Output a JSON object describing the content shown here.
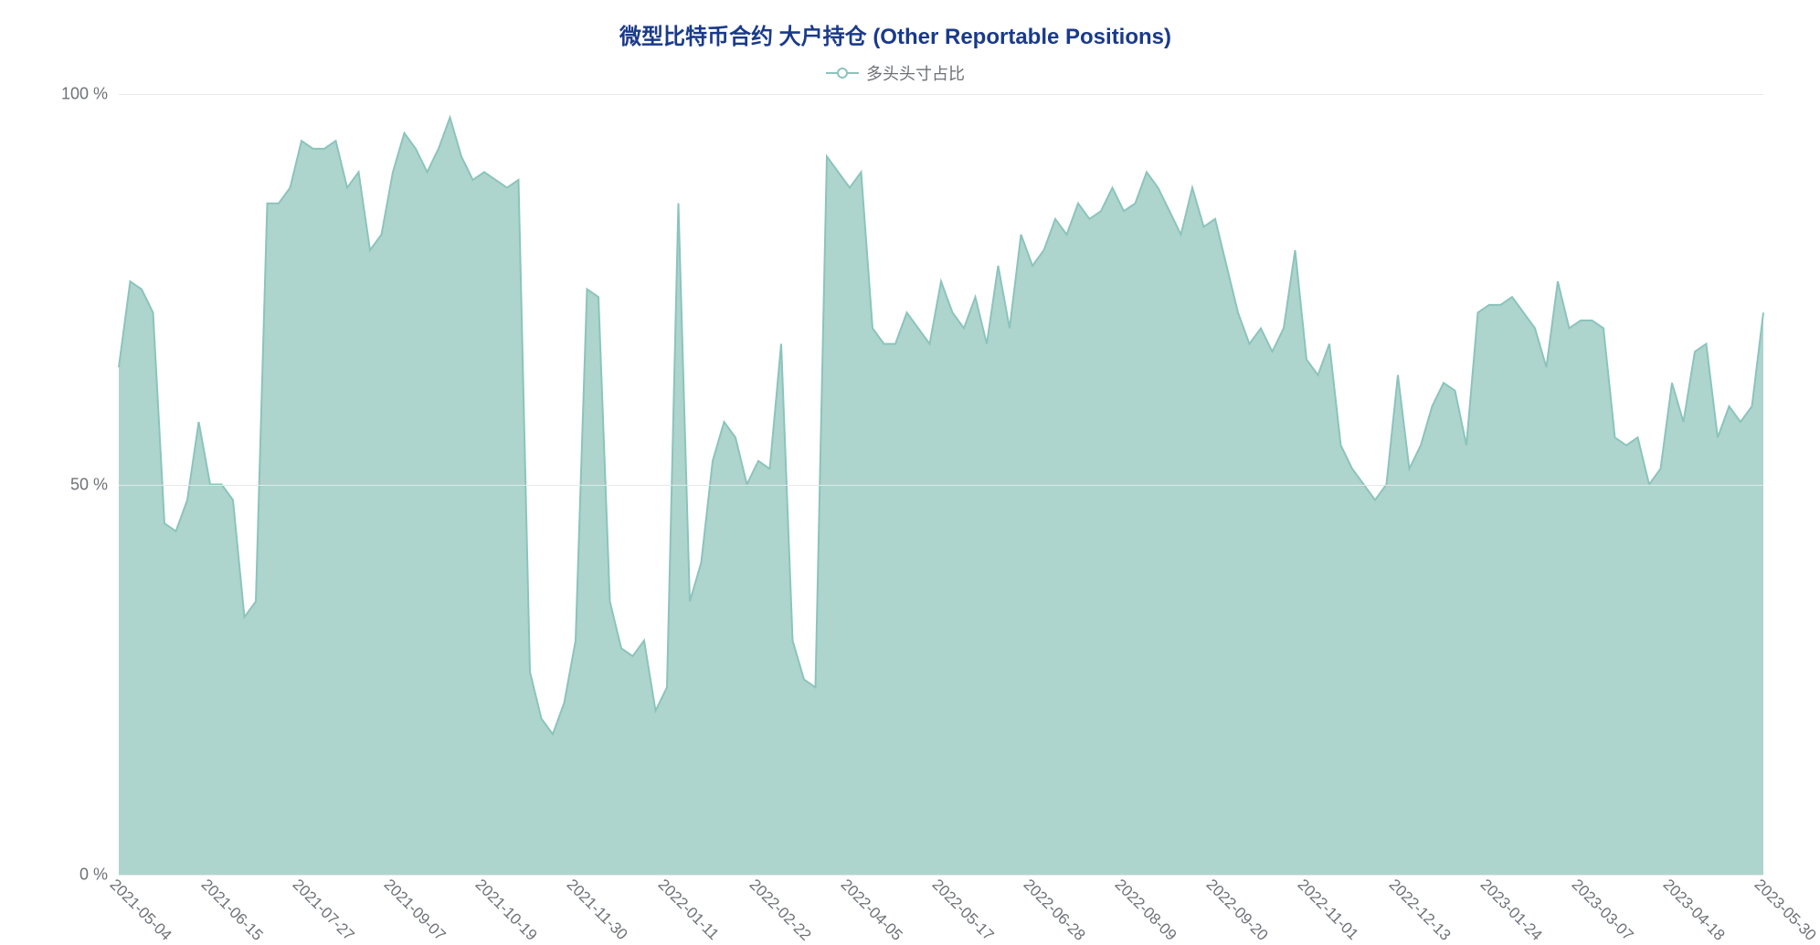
{
  "chart": {
    "type": "area",
    "title": "微型比特币合约 大户持仓 (Other Reportable Positions)",
    "title_color": "#1a3a8a",
    "title_fontsize": 24,
    "legend": {
      "label": "多头头寸占比",
      "color": "#8bc4bc",
      "label_color": "#6d7278",
      "label_fontsize": 18
    },
    "ylim": [
      0,
      100
    ],
    "yticks": [
      0,
      50,
      100
    ],
    "ytick_format": " %",
    "ytick_color": "#6d7278",
    "ytick_fontsize": 18,
    "grid_color": "#e8e8e8",
    "background_color": "#ffffff",
    "area_fill": "#a0cdc6",
    "area_fill_opacity": 0.85,
    "line_color": "#8bc4bc",
    "line_width": 2,
    "x_labels": [
      "2021-05-04",
      "2021-06-15",
      "2021-07-27",
      "2021-09-07",
      "2021-10-19",
      "2021-11-30",
      "2022-01-11",
      "2022-02-22",
      "2022-04-05",
      "2022-05-17",
      "2022-06-28",
      "2022-08-09",
      "2022-09-20",
      "2022-11-01",
      "2022-12-13",
      "2023-01-24",
      "2023-03-07",
      "2023-04-18",
      "2023-05-30"
    ],
    "x_tick_color": "#6d7278",
    "x_tick_fontsize": 17,
    "x_tick_rotation": 45,
    "values": [
      65,
      76,
      75,
      72,
      45,
      44,
      48,
      58,
      50,
      50,
      48,
      33,
      35,
      86,
      86,
      88,
      94,
      93,
      93,
      94,
      88,
      90,
      80,
      82,
      90,
      95,
      93,
      90,
      93,
      97,
      92,
      89,
      90,
      89,
      88,
      89,
      26,
      20,
      18,
      22,
      30,
      75,
      74,
      35,
      29,
      28,
      30,
      21,
      24,
      86,
      35,
      40,
      53,
      58,
      56,
      50,
      53,
      52,
      68,
      30,
      25,
      24,
      92,
      90,
      88,
      90,
      70,
      68,
      68,
      72,
      70,
      68,
      76,
      72,
      70,
      74,
      68,
      78,
      70,
      82,
      78,
      80,
      84,
      82,
      86,
      84,
      85,
      88,
      85,
      86,
      90,
      88,
      85,
      82,
      88,
      83,
      84,
      78,
      72,
      68,
      70,
      67,
      70,
      80,
      66,
      64,
      68,
      55,
      52,
      50,
      48,
      50,
      64,
      52,
      55,
      60,
      63,
      62,
      55,
      72,
      73,
      73,
      74,
      72,
      70,
      65,
      76,
      70,
      71,
      71,
      70,
      56,
      55,
      56,
      50,
      52,
      63,
      58,
      67,
      68,
      56,
      60,
      58,
      60,
      72
    ]
  }
}
